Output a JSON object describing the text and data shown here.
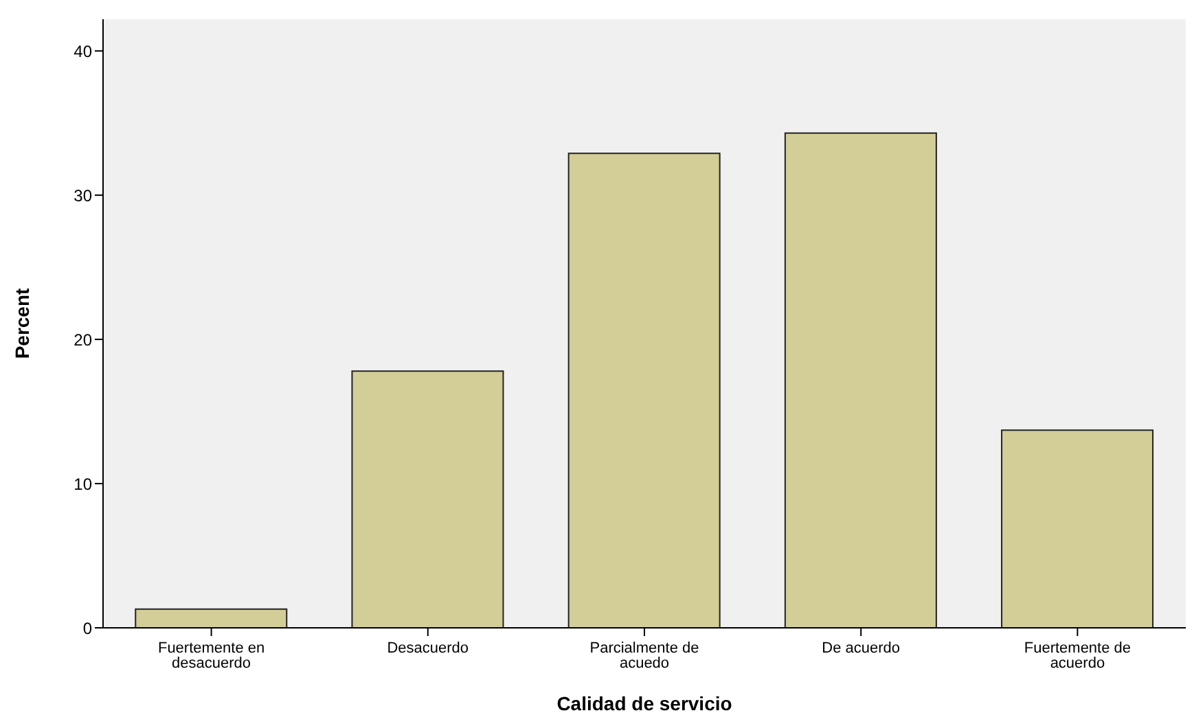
{
  "chart_data": {
    "type": "bar",
    "xlabel": "Calidad de servicio",
    "ylabel": "Percent",
    "categories": [
      "Fuertemente en desacuerdo",
      "Desacuerdo",
      "Parcialmente de acuedo",
      "De acuerdo",
      "Fuertemente de acuerdo"
    ],
    "values": [
      1.3,
      17.8,
      32.9,
      34.3,
      13.7
    ],
    "color": "#d3ce97",
    "ylim": [
      0,
      42.2
    ],
    "yticks": [
      0,
      10,
      20,
      30,
      40
    ],
    "grid": false
  }
}
